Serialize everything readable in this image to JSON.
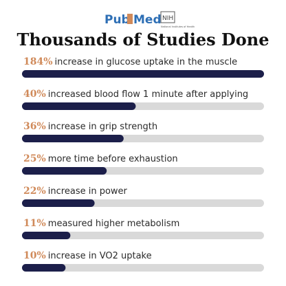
{
  "header": {
    "logo_pub": "Pub",
    "logo_med": "Med",
    "nih": "NIH",
    "nih_sub": "National Institutes of Health",
    "title": "Thousands of Studies Done"
  },
  "items": [
    {
      "percent": "184%",
      "text": "increase in glucose uptake in the muscle",
      "bar": 100
    },
    {
      "percent": "40%",
      "text": "increased blood flow 1 minute after applying",
      "bar": 47
    },
    {
      "percent": "36%",
      "text": "increase in grip strength",
      "bar": 42
    },
    {
      "percent": "25%",
      "text": "more time before exhaustion",
      "bar": 35
    },
    {
      "percent": "22%",
      "text": "increase in power",
      "bar": 30
    },
    {
      "percent": "11%",
      "text": "measured higher metabolism",
      "bar": 20
    },
    {
      "percent": "10%",
      "text": "increase in VO2 uptake",
      "bar": 18
    }
  ]
}
